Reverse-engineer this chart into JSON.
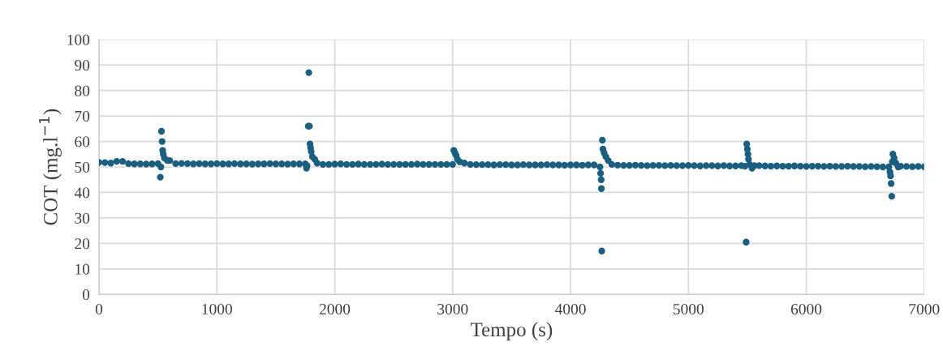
{
  "chart_data": {
    "type": "scatter",
    "xlabel": "Tempo (s)",
    "ylabel": "COT (mg.l$^{−1}$)",
    "xlim": [
      0,
      7000
    ],
    "xticks": [
      0,
      1000,
      2000,
      3000,
      4000,
      5000,
      6000,
      7000
    ],
    "ylim": [
      0,
      100
    ],
    "yticks": [
      0,
      10,
      20,
      30,
      40,
      50,
      60,
      70,
      80,
      90,
      100
    ],
    "grid": true,
    "marker": "circle",
    "series": [
      {
        "color": "#1a5f80",
        "x": [
          0,
          50,
          100,
          150,
          200,
          250,
          300,
          350,
          400,
          450,
          500,
          520,
          525,
          530,
          535,
          540,
          545,
          555,
          580,
          600,
          650,
          700,
          750,
          800,
          850,
          900,
          950,
          1000,
          1050,
          1100,
          1150,
          1200,
          1250,
          1300,
          1350,
          1400,
          1450,
          1500,
          1550,
          1600,
          1650,
          1700,
          1750,
          1760,
          1765,
          1775,
          1780,
          1785,
          1790,
          1795,
          1800,
          1810,
          1830,
          1850,
          1900,
          1950,
          2000,
          2050,
          2100,
          2150,
          2200,
          2250,
          2300,
          2350,
          2400,
          2450,
          2500,
          2550,
          2600,
          2650,
          2700,
          2750,
          2800,
          2850,
          2900,
          2950,
          3000,
          3010,
          3020,
          3030,
          3040,
          3060,
          3100,
          3150,
          3200,
          3250,
          3300,
          3350,
          3400,
          3450,
          3500,
          3550,
          3600,
          3650,
          3700,
          3750,
          3800,
          3850,
          3900,
          3950,
          4000,
          4050,
          4100,
          4150,
          4200,
          4250,
          4255,
          4260,
          4262,
          4265,
          4270,
          4275,
          4285,
          4300,
          4320,
          4350,
          4400,
          4450,
          4500,
          4550,
          4600,
          4650,
          4700,
          4750,
          4800,
          4850,
          4900,
          4950,
          5000,
          5050,
          5100,
          5150,
          5200,
          5250,
          5300,
          5350,
          5400,
          5450,
          5480,
          5490,
          5495,
          5500,
          5505,
          5510,
          5520,
          5540,
          5560,
          5600,
          5650,
          5700,
          5750,
          5800,
          5850,
          5900,
          5950,
          6000,
          6050,
          6100,
          6150,
          6200,
          6250,
          6300,
          6350,
          6400,
          6450,
          6500,
          6550,
          6600,
          6650,
          6700,
          6710,
          6715,
          6720,
          6725,
          6730,
          6735,
          6745,
          6760,
          6780,
          6800,
          6850,
          6900,
          6950,
          7000
        ],
        "values": [
          51.8,
          51.7,
          51.5,
          52.2,
          52.2,
          51.3,
          51.2,
          51.2,
          51.1,
          51.2,
          51.3,
          46,
          50,
          64,
          60,
          56.5,
          55,
          53.5,
          52.5,
          52.5,
          51.3,
          51.4,
          51.3,
          51.2,
          51.3,
          51.2,
          51.2,
          51.3,
          51.2,
          51.2,
          51.3,
          51.2,
          51.2,
          51.1,
          51.2,
          51.2,
          51.3,
          51.2,
          51.2,
          51.1,
          51.2,
          51.2,
          51.2,
          49.5,
          50.5,
          66,
          87,
          66,
          59,
          57.5,
          56,
          54,
          53,
          51.5,
          51,
          51,
          51.1,
          51.2,
          51,
          51,
          51.1,
          51,
          51,
          51,
          51.1,
          51,
          51,
          51,
          51,
          51,
          51.1,
          51,
          51,
          51,
          51,
          51,
          51,
          56.5,
          55.5,
          54.5,
          53,
          52,
          51.5,
          51,
          50.9,
          50.9,
          50.9,
          50.8,
          50.9,
          50.9,
          50.8,
          50.8,
          50.9,
          50.8,
          50.8,
          50.8,
          50.9,
          50.8,
          50.8,
          50.7,
          50.8,
          50.8,
          50.7,
          50.8,
          50.8,
          50,
          47.5,
          45,
          41.5,
          17,
          60.5,
          57,
          55.5,
          54,
          52.5,
          51,
          50.7,
          50.6,
          50.6,
          50.7,
          50.6,
          50.5,
          50.6,
          50.6,
          50.5,
          50.6,
          50.5,
          50.5,
          50.6,
          50.5,
          50.4,
          50.5,
          50.5,
          50.4,
          50.5,
          50.4,
          50.4,
          50.5,
          50.3,
          20.5,
          59,
          57,
          55,
          53,
          51,
          49.5,
          50.5,
          50.5,
          50.4,
          50.3,
          50.4,
          50.3,
          50.3,
          50.4,
          50.3,
          50.2,
          50.3,
          50.3,
          50.2,
          50.3,
          50.2,
          50.2,
          50.3,
          50.2,
          50.2,
          50.1,
          50.2,
          50.1,
          50,
          50,
          48,
          46.5,
          43.5,
          38.5,
          52,
          55,
          53.5,
          51.5,
          50,
          50.3,
          50.2,
          50.1,
          50.2,
          50.1
        ]
      }
    ]
  }
}
